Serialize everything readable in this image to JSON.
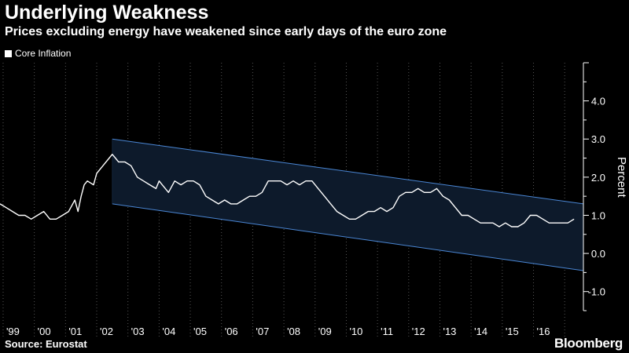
{
  "header": {
    "title": "Underlying Weakness",
    "subtitle": "Prices excluding energy have weakened since early days of the euro zone"
  },
  "legend": {
    "label": "Core Inflation"
  },
  "footer": {
    "source": "Source: Eurostat",
    "brand": "Bloomberg"
  },
  "colors": {
    "background": "#000000",
    "series": "#ffffff",
    "channel_fill": "#0d1a2b",
    "channel_line": "#4a86d4",
    "grid": "#555555"
  },
  "chart_data": {
    "type": "line",
    "title": "Underlying Weakness",
    "subtitle": "Prices excluding energy have weakened since early days of the euro zone",
    "xlabel": "",
    "ylabel": "Percent",
    "xlim": [
      1998.4,
      2017.1
    ],
    "ylim": [
      -1.5,
      5.0
    ],
    "y_ticks": [
      4.0,
      3.0,
      2.0,
      1.0,
      0.0,
      -1.0
    ],
    "y_tick_labels": [
      "4.0",
      "3.0",
      "2.0",
      "1.0",
      "0.0",
      "-1.0"
    ],
    "x_ticks": [
      "'99",
      "'00",
      "'01",
      "'02",
      "'03",
      "'04",
      "'05",
      "'06",
      "'07",
      "'08",
      "'09",
      "'10",
      "'11",
      "'12",
      "'13",
      "'14",
      "'15",
      "'16"
    ],
    "x_tick_years": [
      1999,
      2000,
      2001,
      2002,
      2003,
      2004,
      2005,
      2006,
      2007,
      2008,
      2009,
      2010,
      2011,
      2012,
      2013,
      2014,
      2015,
      2016
    ],
    "grid": "vertical dotted",
    "legend_position": "top-left",
    "series": [
      {
        "name": "Core Inflation",
        "x": [
          1998.4,
          1998.6,
          1998.8,
          1999.0,
          1999.2,
          1999.4,
          1999.6,
          1999.8,
          2000.0,
          2000.2,
          2000.4,
          2000.6,
          2000.8,
          2000.9,
          2001.0,
          2001.1,
          2001.2,
          2001.4,
          2001.5,
          2001.7,
          2001.9,
          2002.0,
          2002.1,
          2002.2,
          2002.4,
          2002.6,
          2002.8,
          2003.0,
          2003.2,
          2003.4,
          2003.5,
          2003.6,
          2003.8,
          2004.0,
          2004.2,
          2004.4,
          2004.6,
          2004.8,
          2005.0,
          2005.2,
          2005.4,
          2005.6,
          2005.8,
          2006.0,
          2006.2,
          2006.4,
          2006.6,
          2006.8,
          2007.0,
          2007.2,
          2007.4,
          2007.6,
          2007.8,
          2008.0,
          2008.2,
          2008.4,
          2008.6,
          2008.8,
          2009.0,
          2009.2,
          2009.4,
          2009.6,
          2009.8,
          2010.0,
          2010.2,
          2010.4,
          2010.6,
          2010.8,
          2011.0,
          2011.2,
          2011.4,
          2011.6,
          2011.8,
          2012.0,
          2012.2,
          2012.4,
          2012.6,
          2012.8,
          2013.0,
          2013.2,
          2013.4,
          2013.6,
          2013.8,
          2014.0,
          2014.2,
          2014.4,
          2014.6,
          2014.8,
          2015.0,
          2015.2,
          2015.4,
          2015.6,
          2015.8,
          2016.0,
          2016.2,
          2016.4,
          2016.6,
          2016.8
        ],
        "y": [
          1.3,
          1.2,
          1.1,
          1.0,
          1.0,
          0.9,
          1.0,
          1.1,
          0.9,
          0.9,
          1.0,
          1.1,
          1.4,
          1.1,
          1.5,
          1.8,
          1.9,
          1.8,
          2.1,
          2.3,
          2.5,
          2.6,
          2.5,
          2.4,
          2.4,
          2.3,
          2.0,
          1.9,
          1.8,
          1.7,
          1.9,
          1.8,
          1.6,
          1.9,
          1.8,
          1.9,
          1.9,
          1.8,
          1.5,
          1.4,
          1.3,
          1.4,
          1.3,
          1.3,
          1.4,
          1.5,
          1.5,
          1.6,
          1.9,
          1.9,
          1.9,
          1.8,
          1.9,
          1.8,
          1.9,
          1.9,
          1.7,
          1.5,
          1.3,
          1.1,
          1.0,
          0.9,
          0.9,
          1.0,
          1.1,
          1.1,
          1.2,
          1.1,
          1.2,
          1.5,
          1.6,
          1.6,
          1.7,
          1.6,
          1.6,
          1.7,
          1.5,
          1.4,
          1.2,
          1.0,
          1.0,
          0.9,
          0.8,
          0.8,
          0.8,
          0.7,
          0.8,
          0.7,
          0.7,
          0.8,
          1.0,
          1.0,
          0.9,
          0.8,
          0.8,
          0.8,
          0.8,
          0.9
        ]
      }
    ],
    "channel": {
      "upper": {
        "x": [
          2002.0,
          2017.1
        ],
        "y": [
          3.0,
          1.3
        ]
      },
      "lower": {
        "x": [
          2002.0,
          2017.1
        ],
        "y": [
          1.3,
          -0.45
        ]
      }
    }
  }
}
